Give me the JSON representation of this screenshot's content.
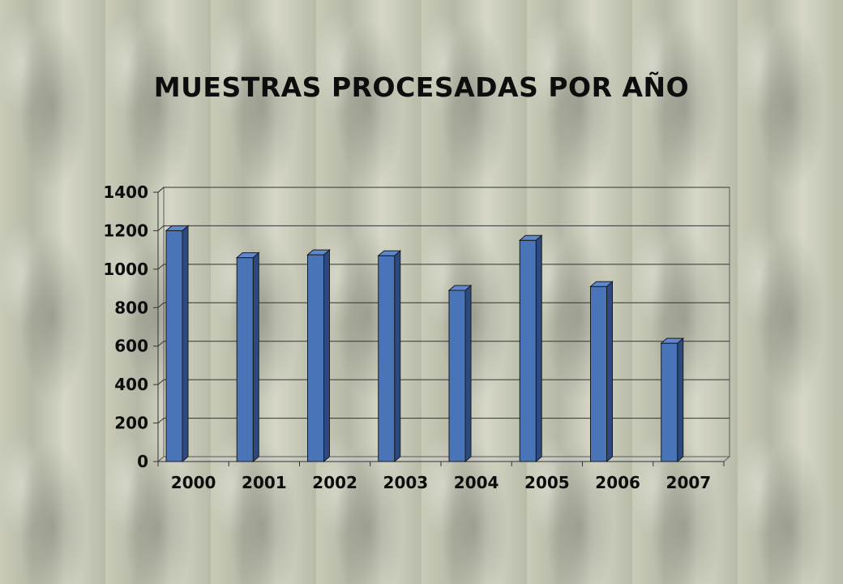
{
  "title": "MUESTRAS PROCESADAS POR AÑO",
  "chart_data": {
    "type": "bar",
    "title": "MUESTRAS PROCESADAS POR AÑO",
    "categories": [
      "2000",
      "2001",
      "2002",
      "2003",
      "2004",
      "2005",
      "2006",
      "2007"
    ],
    "series": [
      {
        "values": [
          1200,
          1060,
          1075,
          1070,
          890,
          1150,
          910,
          615
        ],
        "color": "#4a74b8"
      }
    ],
    "ylim": [
      0,
      1400
    ],
    "yticks": [
      0,
      200,
      400,
      600,
      800,
      1000,
      1200,
      1400
    ],
    "ytick_labels": [
      "0",
      "200",
      "400",
      "600",
      "800",
      "1000",
      "1200",
      "1400"
    ],
    "grid": true,
    "legend": "none",
    "style": "3d-column"
  }
}
